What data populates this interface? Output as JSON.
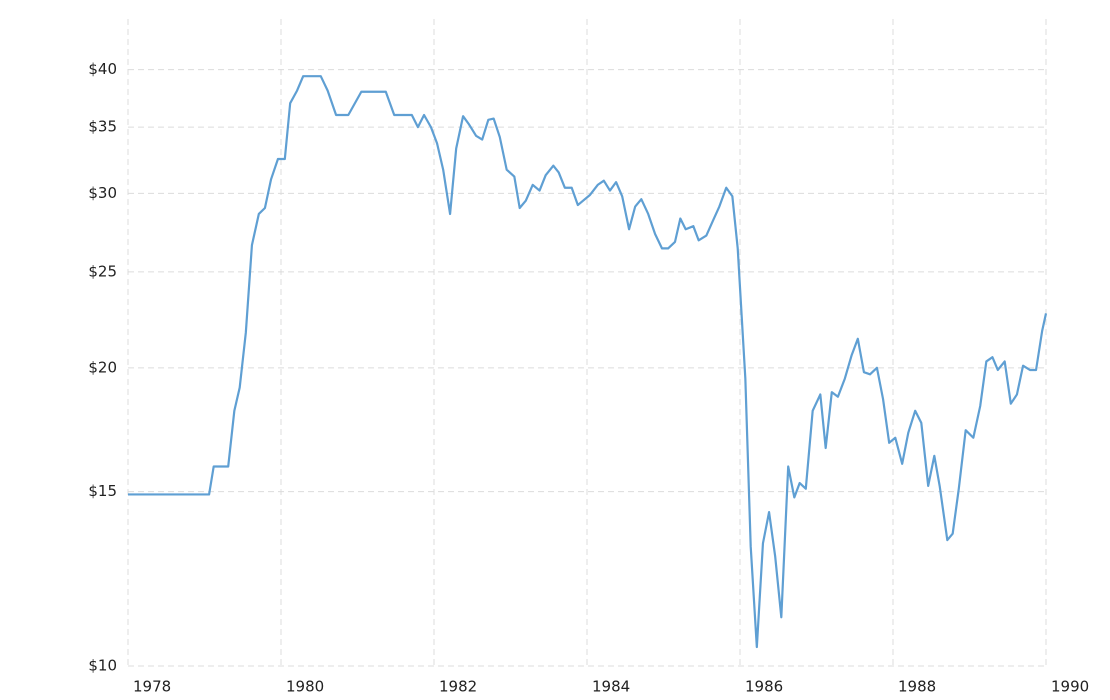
{
  "chart_data": {
    "type": "line",
    "x": [
      1978.0,
      1979.06,
      1979.12,
      1979.31,
      1979.39,
      1979.46,
      1979.54,
      1979.62,
      1979.71,
      1979.79,
      1979.87,
      1979.96,
      1980.05,
      1980.12,
      1980.21,
      1980.29,
      1980.52,
      1980.61,
      1980.72,
      1980.88,
      1981.05,
      1981.37,
      1981.48,
      1981.71,
      1981.79,
      1981.87,
      1981.96,
      1982.04,
      1982.12,
      1982.21,
      1982.29,
      1982.38,
      1982.46,
      1982.55,
      1982.63,
      1982.71,
      1982.78,
      1982.86,
      1982.95,
      1983.05,
      1983.12,
      1983.2,
      1983.29,
      1983.38,
      1983.46,
      1983.56,
      1983.63,
      1983.71,
      1983.8,
      1983.88,
      1984.04,
      1984.14,
      1984.22,
      1984.3,
      1984.38,
      1984.46,
      1984.55,
      1984.63,
      1984.71,
      1984.8,
      1984.89,
      1984.98,
      1985.06,
      1985.15,
      1985.22,
      1985.29,
      1985.39,
      1985.46,
      1985.56,
      1985.65,
      1985.73,
      1985.82,
      1985.9,
      1985.97,
      1986.07,
      1986.14,
      1986.22,
      1986.3,
      1986.38,
      1986.46,
      1986.54,
      1986.63,
      1986.71,
      1986.78,
      1986.86,
      1986.95,
      1987.05,
      1987.12,
      1987.2,
      1987.28,
      1987.37,
      1987.46,
      1987.54,
      1987.62,
      1987.7,
      1987.79,
      1987.87,
      1987.95,
      1988.03,
      1988.12,
      1988.2,
      1988.29,
      1988.37,
      1988.46,
      1988.54,
      1988.61,
      1988.71,
      1988.78,
      1988.86,
      1988.95,
      1989.05,
      1989.14,
      1989.22,
      1989.3,
      1989.37,
      1989.46,
      1989.54,
      1989.62,
      1989.7,
      1989.79,
      1989.87,
      1989.95,
      1990.0
    ],
    "values": [
      14.9,
      14.9,
      15.9,
      15.9,
      18.1,
      19.1,
      21.7,
      26.6,
      28.6,
      29.0,
      31.0,
      32.5,
      32.5,
      37.0,
      38.1,
      39.4,
      39.4,
      38.1,
      36.0,
      36.0,
      38.0,
      38.0,
      36.0,
      36.0,
      35.0,
      36.0,
      35.0,
      33.7,
      31.7,
      28.6,
      33.3,
      35.9,
      35.2,
      34.3,
      34.0,
      35.6,
      35.7,
      34.2,
      31.7,
      31.2,
      29.0,
      29.5,
      30.6,
      30.2,
      31.3,
      32.0,
      31.5,
      30.4,
      30.4,
      29.2,
      29.9,
      30.6,
      30.9,
      30.2,
      30.8,
      29.8,
      27.6,
      29.1,
      29.6,
      28.6,
      27.3,
      26.4,
      26.4,
      26.8,
      28.3,
      27.6,
      27.8,
      26.9,
      27.2,
      28.2,
      29.1,
      30.4,
      29.8,
      26.4,
      19.5,
      13.2,
      10.45,
      13.3,
      14.3,
      12.9,
      11.2,
      15.9,
      14.8,
      15.3,
      15.1,
      18.1,
      18.8,
      16.6,
      18.9,
      18.7,
      19.5,
      20.6,
      21.4,
      19.8,
      19.7,
      20.0,
      18.6,
      16.8,
      17.0,
      16.0,
      17.2,
      18.1,
      17.6,
      15.2,
      16.3,
      15.2,
      13.4,
      13.6,
      15.1,
      17.3,
      17.0,
      18.3,
      20.3,
      20.5,
      19.9,
      20.3,
      18.4,
      18.8,
      20.1,
      19.9,
      19.9,
      21.8,
      22.7
    ],
    "color": "#5f9fd3",
    "xlim": [
      1978,
      1990
    ],
    "xticks": [
      1978,
      1980,
      1982,
      1984,
      1986,
      1988,
      1990
    ],
    "ylim": [
      10,
      45
    ],
    "y_scale": "log",
    "yticks": [
      {
        "value": 10,
        "label": "$10"
      },
      {
        "value": 15,
        "label": "$15"
      },
      {
        "value": 20,
        "label": "$20"
      },
      {
        "value": 25,
        "label": "$25"
      },
      {
        "value": 30,
        "label": "$30"
      },
      {
        "value": 35,
        "label": "$35"
      },
      {
        "value": 40,
        "label": "$40"
      }
    ],
    "grid": true
  }
}
